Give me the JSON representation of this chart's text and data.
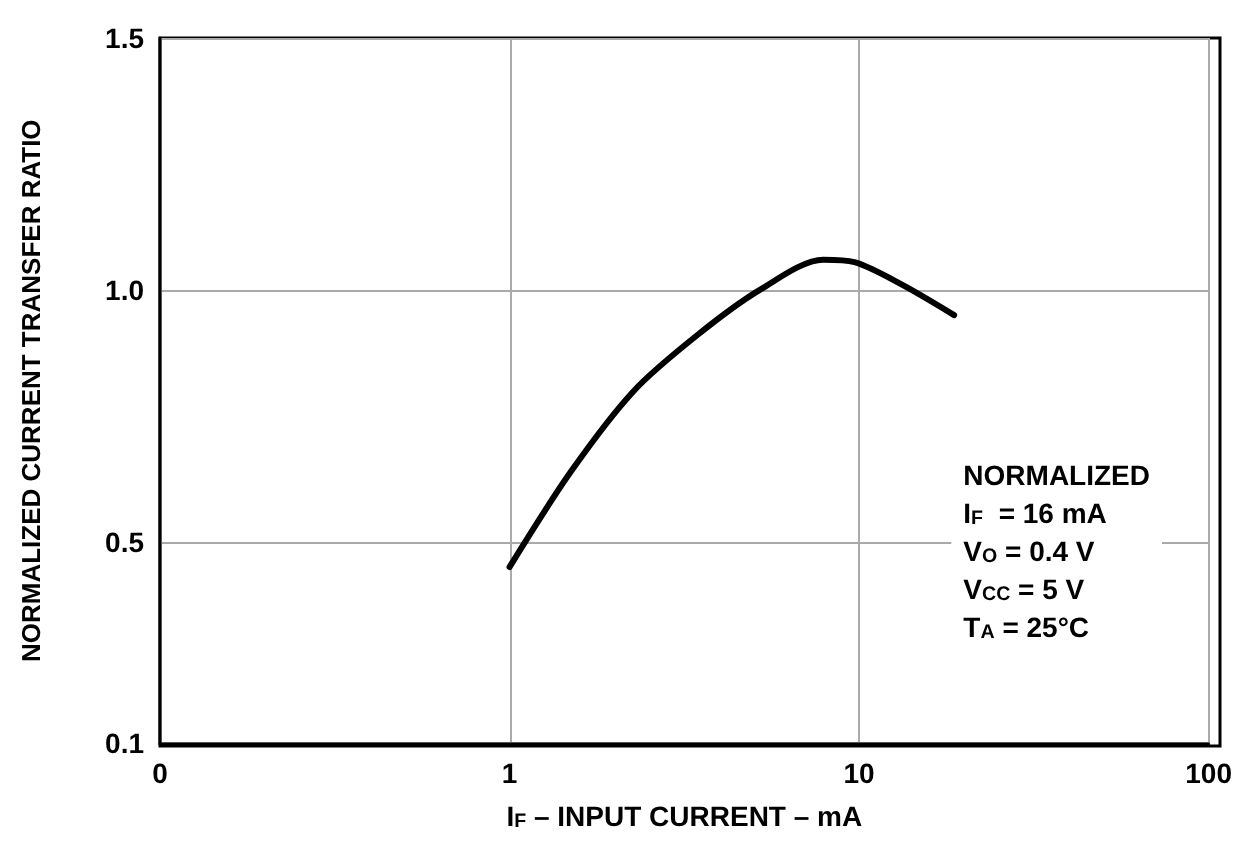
{
  "chart_data": {
    "type": "line",
    "xlabel": "I$_{F}$ – INPUT CURRENT – mA",
    "ylabel": "NORMALIZED CURRENT TRANSFER RATIO",
    "x": [
      1,
      1.5,
      2.27,
      3.44,
      5.2,
      7.9,
      9.7,
      13.3,
      18.7
    ],
    "series": [
      {
        "color": "#000000",
        "values": [
          0.45,
          0.64,
          0.8,
          0.91,
          1.0,
          1.06,
          1.055,
          1.01,
          0.95
        ]
      }
    ],
    "log": "x",
    "xlim": [
      0.1,
      100
    ],
    "xticks": [
      {
        "value": 0.1,
        "label": "0"
      },
      1,
      10,
      100
    ],
    "ylim": [
      0.1,
      1.5
    ],
    "yticks": [
      0.1,
      0.5,
      {
        "value": 1,
        "label": "1.0"
      },
      1.5
    ],
    "grid": true,
    "marker": "none",
    "line_style": "solid",
    "annotations": [
      "NORMALIZED",
      "I$_{F}$  = 16 mA",
      "V$_{O}$ = 0.4 V",
      "V$_{CC}$ = 5 V",
      "T$_{A}$ = 25°C"
    ]
  }
}
